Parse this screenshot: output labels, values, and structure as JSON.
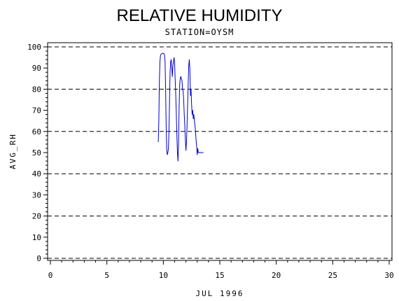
{
  "chart_data": {
    "type": "line",
    "title": "RELATIVE HUMIDITY",
    "subtitle": "STATION=OYSM",
    "xlabel": "JUL 1996",
    "ylabel": "AVG_RH",
    "xlim": [
      0,
      30
    ],
    "ylim": [
      0,
      100
    ],
    "x_ticks": [
      0,
      5,
      10,
      15,
      20,
      25,
      30
    ],
    "y_ticks": [
      0,
      10,
      20,
      30,
      40,
      50,
      60,
      70,
      80,
      90,
      100
    ],
    "reference_lines": [
      0,
      20,
      40,
      60,
      80,
      100
    ],
    "grid": false,
    "line_color": "#0000cc",
    "series": [
      {
        "x": [
          9.55,
          9.6,
          9.65,
          9.7,
          9.75,
          9.8,
          9.9,
          10.0,
          10.1,
          10.15,
          10.2,
          10.25,
          10.3,
          10.35,
          10.4,
          10.45,
          10.5,
          10.55,
          10.6,
          10.65,
          10.7,
          10.75,
          10.8,
          10.85,
          10.9,
          10.95,
          11.0,
          11.05,
          11.1,
          11.15,
          11.2,
          11.25,
          11.3,
          11.35,
          11.4,
          11.45,
          11.5,
          11.55,
          11.6,
          11.65,
          11.7,
          11.75,
          11.8,
          11.85,
          11.9,
          11.95,
          12.0,
          12.05,
          12.1,
          12.15,
          12.2,
          12.25,
          12.3,
          12.35,
          12.4,
          12.45,
          12.5,
          12.55,
          12.6,
          12.65,
          12.7,
          12.75,
          12.8,
          12.85,
          12.9,
          12.95,
          13.0,
          13.05,
          13.1,
          13.15,
          13.2,
          13.25,
          13.3,
          13.35,
          13.4,
          13.45,
          13.5,
          13.55
        ],
        "y": [
          55,
          65,
          84,
          93,
          96,
          96.5,
          97,
          97,
          96.5,
          93,
          80,
          62,
          51,
          49,
          50,
          52,
          60,
          75,
          88,
          93,
          94,
          90,
          86,
          91,
          93,
          95,
          92,
          84,
          77,
          68,
          58,
          50,
          46,
          55,
          72,
          82,
          85,
          86,
          85,
          84,
          80,
          79,
          75,
          68,
          63,
          56,
          51,
          55,
          63,
          72,
          82,
          91,
          94,
          90,
          77,
          80,
          73,
          68,
          70,
          66,
          68,
          65,
          63,
          60,
          56,
          53,
          49,
          52,
          50,
          50,
          50,
          50,
          50,
          50,
          50,
          50,
          50,
          50
        ]
      }
    ]
  }
}
